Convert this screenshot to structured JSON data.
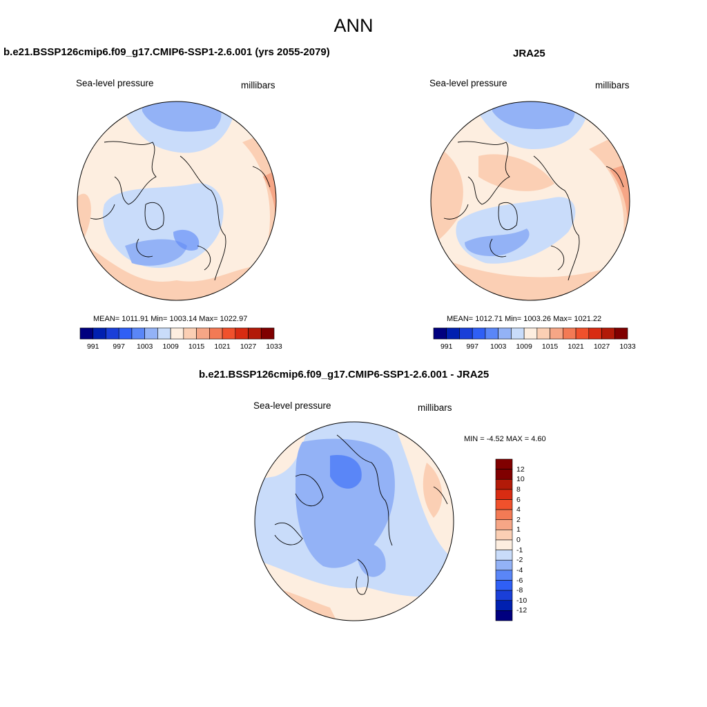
{
  "title": "ANN",
  "panels": {
    "model": {
      "title": "b.e21.BSSP126cmip6.f09_g17.CMIP6-SSP1-2.6.001 (yrs 2055-2079)",
      "variable": "Sea-level pressure",
      "units": "millibars",
      "stats": "MEAN= 1011.91  Min= 1003.14  Max= 1022.97"
    },
    "obs": {
      "title": "JRA25",
      "variable": "Sea-level pressure",
      "units": "millibars",
      "stats": "MEAN= 1012.71  Min= 1003.26  Max= 1021.22"
    },
    "diff": {
      "title": "b.e21.BSSP126cmip6.f09_g17.CMIP6-SSP1-2.6.001 - JRA25",
      "variable": "Sea-level pressure",
      "units": "millibars",
      "stats": "MIN =  -4.52 MAX =   4.60"
    }
  },
  "colorbar_abs": {
    "labels": [
      "991",
      "997",
      "1003",
      "1009",
      "1015",
      "1021",
      "1027",
      "1033"
    ],
    "colors": [
      "#00007f",
      "#0020b0",
      "#1a3fd8",
      "#2f5ff5",
      "#5a86f7",
      "#93b2f6",
      "#c9dcfa",
      "#fdeee0",
      "#fbcfb4",
      "#f6a686",
      "#f37a55",
      "#f0512c",
      "#d82c12",
      "#b21a08",
      "#800000"
    ]
  },
  "colorbar_diff": {
    "labels": [
      "12",
      "10",
      "8",
      "6",
      "4",
      "2",
      "1",
      "0",
      "-1",
      "-2",
      "-4",
      "-6",
      "-8",
      "-10",
      "-12"
    ],
    "colors": [
      "#800000",
      "#b21a08",
      "#d82c12",
      "#f0512c",
      "#f37a55",
      "#f6a686",
      "#fbcfb4",
      "#fdeee0",
      "#c9dcfa",
      "#93b2f6",
      "#5a86f7",
      "#2f5ff5",
      "#1a3fd8",
      "#0020b0",
      "#00007f"
    ]
  }
}
